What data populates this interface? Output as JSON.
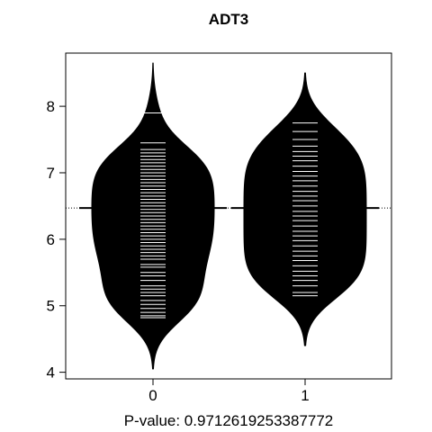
{
  "chart_data": {
    "type": "beanplot",
    "title": "ADT3",
    "xlabel": "P-value: 0.9712619253387772",
    "ylabel": "",
    "categories": [
      "0",
      "1"
    ],
    "x_ticks": [
      "0",
      "1"
    ],
    "y_ticks": [
      4,
      5,
      6,
      7,
      8
    ],
    "ylim": [
      3.9,
      8.8
    ],
    "overall_mean": 6.47,
    "grid": false,
    "colors": {
      "bean": "#000000",
      "lines": "#ffffff",
      "axis": "#000000"
    },
    "series": [
      {
        "category": "0",
        "mean": 6.47,
        "range": [
          4.05,
          8.65
        ],
        "density_peak": 6.55,
        "observations": [
          4.82,
          4.85,
          4.9,
          4.96,
          5.02,
          5.08,
          5.15,
          5.2,
          5.25,
          5.3,
          5.38,
          5.45,
          5.5,
          5.58,
          5.62,
          5.7,
          5.75,
          5.8,
          5.85,
          5.9,
          5.95,
          6.0,
          6.05,
          6.1,
          6.15,
          6.2,
          6.25,
          6.3,
          6.35,
          6.4,
          6.45,
          6.5,
          6.55,
          6.6,
          6.65,
          6.7,
          6.75,
          6.8,
          6.85,
          6.9,
          6.95,
          7.0,
          7.05,
          7.1,
          7.15,
          7.2,
          7.25,
          7.3,
          7.35,
          7.45,
          7.9
        ]
      },
      {
        "category": "1",
        "mean": 6.47,
        "range": [
          4.4,
          8.5
        ],
        "density_peak": 6.45,
        "observations": [
          5.15,
          5.2,
          5.3,
          5.38,
          5.45,
          5.52,
          5.6,
          5.68,
          5.75,
          5.82,
          5.9,
          5.98,
          6.05,
          6.12,
          6.2,
          6.28,
          6.35,
          6.42,
          6.5,
          6.58,
          6.65,
          6.72,
          6.8,
          6.88,
          6.95,
          7.02,
          7.1,
          7.18,
          7.25,
          7.32,
          7.4,
          7.5,
          7.62,
          7.75
        ]
      }
    ]
  }
}
